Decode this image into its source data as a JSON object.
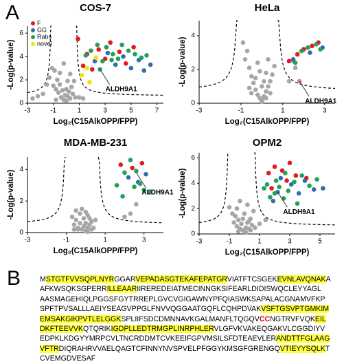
{
  "panel_labels": {
    "a": "A",
    "b": "B"
  },
  "chart_data": [
    {
      "type": "scatter",
      "title": "COS-7",
      "x_label": "Log₂(C15AlkOPP/FPP)",
      "y_label": "-Log(p-value)",
      "xlim": [
        -3,
        7.5
      ],
      "ylim": [
        0,
        6.6
      ],
      "xticks": [
        -3,
        -1,
        1,
        3,
        5,
        7
      ],
      "yticks": [
        0,
        2,
        4,
        6
      ],
      "legend": "upper-left",
      "series": [
        {
          "color": "#a6a6a6",
          "x": [
            -2.6,
            -2.2,
            -1.8,
            -1.5,
            -1.3,
            -1.1,
            -1.0,
            -0.9,
            -0.8,
            -0.7,
            -0.6,
            -0.5,
            -0.4,
            -0.3,
            -0.2,
            -0.1,
            0,
            0.1,
            0.2,
            0.3,
            0.4,
            0.5,
            0.6,
            0.7,
            -0.5,
            -0.2,
            0.1,
            0.3,
            -0.8,
            0.0,
            1.0,
            1.3
          ],
          "y": [
            0.4,
            0.6,
            0.8,
            1.6,
            2.2,
            3.0,
            1.5,
            2.8,
            1.2,
            2.0,
            0.9,
            1.6,
            0.5,
            1.1,
            0.3,
            0.7,
            0.2,
            0.6,
            1.0,
            0.4,
            1.4,
            0.8,
            1.9,
            0.5,
            2.6,
            3.4,
            1.9,
            2.5,
            0.3,
            1.2,
            0.5,
            0.4
          ]
        },
        {
          "name": "F",
          "color": "#e31a1c",
          "x": [
            0.9,
            1.3,
            1.6,
            2.0,
            2.5,
            3.0,
            3.4,
            4.1,
            4.6,
            5.2
          ],
          "y": [
            5.5,
            3.2,
            4.2,
            2.9,
            4.6,
            3.8,
            5.2,
            4.4,
            3.4,
            4.8
          ]
        },
        {
          "name": "GG",
          "color": "#2f6ea8",
          "x": [
            2.2,
            3.8,
            4.4,
            5.0,
            5.6,
            6.0,
            6.5,
            3.2
          ],
          "y": [
            3.6,
            3.3,
            4.0,
            3.0,
            3.7,
            2.8,
            3.3,
            4.3
          ]
        },
        {
          "name": "Rabs",
          "color": "#1fa15a",
          "x": [
            1.5,
            1.9,
            2.4,
            2.8,
            3.1,
            3.6,
            4.0,
            4.3,
            4.8,
            5.3,
            5.8,
            6.2,
            2.6,
            3.5
          ],
          "y": [
            4.1,
            4.5,
            5.0,
            3.6,
            4.8,
            4.2,
            3.8,
            5.0,
            4.5,
            4.2,
            3.9,
            4.1,
            2.9,
            3.7
          ]
        },
        {
          "name": "novel",
          "color": "#f2e600",
          "x": [
            1.2,
            1.8,
            2.3,
            1.6
          ],
          "y": [
            2.4,
            1.8,
            3.9,
            3.0
          ]
        }
      ],
      "annotation": {
        "text": "ALDH9A1",
        "x": 2.6,
        "y": 2.9
      }
    },
    {
      "type": "scatter",
      "title": "HeLa",
      "x_label": "Log₂(C15AlkOPP/FPP)",
      "y_label": "-Log(p-value)",
      "xlim": [
        -3,
        3.5
      ],
      "ylim": [
        0,
        4.9
      ],
      "xticks": [
        -3,
        -1,
        1,
        3
      ],
      "yticks": [
        0,
        2,
        4
      ],
      "series": [
        {
          "color": "#a6a6a6",
          "x": [
            -0.9,
            -0.8,
            -0.7,
            -0.6,
            -0.5,
            -0.4,
            -0.3,
            -0.2,
            -0.1,
            0,
            0.1,
            0.2,
            0.3,
            0.4,
            0.5,
            0.6,
            -0.5,
            -0.3,
            0,
            0.2,
            0.4,
            -0.2,
            0.1,
            -0.6,
            0.3,
            0.0,
            -0.1,
            0.2,
            1.3,
            1.6,
            1.5
          ],
          "y": [
            3.6,
            2.6,
            3.1,
            2.1,
            1.6,
            1.2,
            0.8,
            0.5,
            0.3,
            0.2,
            0.4,
            0.7,
            1.0,
            1.3,
            1.7,
            2.2,
            0.6,
            1.5,
            1.0,
            1.8,
            0.6,
            2.4,
            1.3,
            0.9,
            2.6,
            0.1,
            1.9,
            0.3,
            1.3,
            2.1,
            2.5
          ]
        },
        {
          "color": "#e31a1c",
          "x": [
            1.3,
            1.7,
            2.0,
            2.4,
            2.7
          ],
          "y": [
            2.5,
            2.9,
            3.2,
            3.4,
            3.6
          ]
        },
        {
          "color": "#2f6ea8",
          "x": [
            1.5,
            2.3,
            2.9
          ],
          "y": [
            2.6,
            3.0,
            3.3
          ]
        },
        {
          "color": "#1fa15a",
          "x": [
            1.9,
            2.2,
            2.6,
            2.8,
            1.6
          ],
          "y": [
            3.1,
            3.3,
            3.5,
            3.2,
            2.4
          ]
        },
        {
          "color": "#e8788a",
          "x": [
            1.8
          ],
          "y": [
            1.3
          ]
        }
      ],
      "annotation": {
        "text": "ALDH9A1",
        "x": 1.8,
        "y": 1.3
      }
    },
    {
      "type": "scatter",
      "title": "MDA-MB-231",
      "x_label": "Log₂(C15AlkOPP/FPP)",
      "y_label": "-Log(p-value)",
      "xlim": [
        -3,
        4
      ],
      "ylim": [
        0,
        4.8
      ],
      "xticks": [
        -3,
        -1,
        1,
        3
      ],
      "yticks": [
        0,
        2,
        4
      ],
      "series": [
        {
          "color": "#a6a6a6",
          "x": [
            -0.7,
            -0.6,
            -0.5,
            -0.4,
            -0.3,
            -0.2,
            -0.1,
            0,
            0.1,
            0.2,
            0.3,
            -0.5,
            -0.3,
            -0.1,
            0.1,
            0.3,
            -0.4,
            0,
            0.2,
            -0.2,
            0.4,
            0.5,
            -0.6,
            0.0,
            0.1,
            2.0,
            2.3,
            2.6
          ],
          "y": [
            1.0,
            0.5,
            0.8,
            0.3,
            0.6,
            0.2,
            0.4,
            0.1,
            0.3,
            0.5,
            0.7,
            1.4,
            1.2,
            0.9,
            1.1,
            0.2,
            0.2,
            0.6,
            0.9,
            1.5,
            0.3,
            0.8,
            0.2,
            1.3,
            0.05,
            1.0,
            1.2,
            1.8
          ]
        },
        {
          "color": "#e31a1c",
          "x": [
            1.8,
            2.4,
            2.9
          ],
          "y": [
            4.3,
            4.1,
            4.4
          ]
        },
        {
          "color": "#2f6ea8",
          "x": [
            2.2,
            2.7,
            3.1
          ],
          "y": [
            3.5,
            3.2,
            3.7
          ]
        },
        {
          "color": "#1fa15a",
          "x": [
            1.6,
            2.0,
            2.3,
            2.6,
            2.8,
            3.0,
            3.3,
            1.9,
            2.5
          ],
          "y": [
            3.0,
            3.8,
            4.6,
            3.9,
            3.1,
            2.7,
            2.6,
            2.3,
            2.9
          ]
        }
      ],
      "annotation": {
        "text": "ALDH9A1",
        "x": 2.6,
        "y": 3.8
      }
    },
    {
      "type": "scatter",
      "title": "OPM2",
      "x_label": "Log₂(C15AlkOPP/FPP)",
      "y_label": "-Log(p-value)",
      "xlim": [
        -3,
        6
      ],
      "ylim": [
        0,
        6.4
      ],
      "xticks": [
        -3,
        -1,
        1,
        3,
        5
      ],
      "yticks": [
        0,
        2,
        4,
        6
      ],
      "series": [
        {
          "color": "#a6a6a6",
          "x": [
            -1.0,
            -0.8,
            -0.7,
            -0.6,
            -0.5,
            -0.4,
            -0.3,
            -0.2,
            -0.1,
            0,
            0.1,
            0.2,
            0.3,
            0.4,
            0.5,
            0.6,
            -0.5,
            -0.3,
            0,
            0.2,
            0.4,
            -0.1,
            0.1,
            -0.4,
            0.3,
            0.7,
            1.0,
            1.4
          ],
          "y": [
            2.1,
            1.6,
            0.9,
            1.4,
            0.6,
            1.1,
            0.4,
            0.8,
            0.3,
            0.2,
            0.5,
            0.9,
            0.4,
            1.2,
            0.7,
            1.8,
            2.0,
            2.6,
            1.6,
            2.3,
            0.3,
            1.2,
            0.1,
            0.2,
            1.0,
            0.5,
            0.8,
            1.1
          ]
        },
        {
          "color": "#e31a1c",
          "x": [
            1.6,
            2.0,
            2.5,
            3.0,
            3.4,
            1.8,
            2.8,
            4.1
          ],
          "y": [
            4.8,
            5.3,
            5.0,
            5.6,
            4.6,
            3.6,
            4.2,
            4.4
          ]
        },
        {
          "color": "#2f6ea8",
          "x": [
            1.9,
            2.4,
            3.1,
            3.6,
            4.0,
            4.6,
            5.2,
            2.2
          ],
          "y": [
            2.6,
            4.4,
            3.9,
            3.2,
            4.2,
            3.5,
            3.6,
            3.3
          ]
        },
        {
          "color": "#1fa15a",
          "x": [
            1.5,
            1.7,
            2.1,
            2.3,
            2.7,
            2.9,
            3.3,
            3.8,
            4.3,
            4.8,
            2.0,
            2.6,
            3.5,
            1.3
          ],
          "y": [
            3.9,
            2.9,
            4.2,
            3.7,
            4.8,
            3.4,
            4.1,
            4.6,
            3.8,
            4.3,
            3.2,
            2.8,
            2.4,
            3.6
          ]
        }
      ],
      "annotation": {
        "text": "ALDH9A1",
        "x": 2.2,
        "y": 3.3
      }
    }
  ],
  "sequence": {
    "lines": [
      [
        {
          "text": "M",
          "style": "plain"
        },
        {
          "text": "STGTFVVSQPLNYR",
          "style": "highlight"
        },
        {
          "text": "GGAR",
          "style": "plain"
        },
        {
          "text": "VEPADASGTEKAFEPATGR",
          "style": "highlight"
        },
        {
          "text": "VIATFTCSGEK",
          "style": "plain"
        },
        {
          "text": "EVNLAVQNAK",
          "style": "highlight"
        },
        {
          "text": "A",
          "style": "plain"
        }
      ],
      [
        {
          "text": "AFKWSQKSGPERR",
          "style": "plain"
        },
        {
          "text": "ILLEAAR",
          "style": "highlight"
        },
        {
          "text": "IIREREDEIATMECINNGKSIFEARLDIDISWQCLEYYAGL",
          "style": "plain"
        }
      ],
      [
        {
          "text": "AASMAGEHIQLPGGSFGYTRREPLGVCVGIGAWNYPFQIASWKSAPALACGNAMVFKP",
          "style": "plain"
        }
      ],
      [
        {
          "text": "SPFTPVSALLLAEIYSEAGVPPGLFNVVQGGAATGQFLCQHPDVAK",
          "style": "plain"
        },
        {
          "text": "VSFTGSVPTGMKIM",
          "style": "highlight"
        }
      ],
      [
        {
          "text": "EMSAKGIKPVTLELGGK",
          "style": "highlight"
        },
        {
          "text": "SPLIIFSDCDMNNAVKGALMANFLTQGQV",
          "style": "plain"
        },
        {
          "text": "CC",
          "style": "red"
        },
        {
          "text": "NGTRVFVQK",
          "style": "plain"
        },
        {
          "text": "EIL",
          "style": "highlight"
        }
      ],
      [
        {
          "text": "DKFTEEVVK",
          "style": "highlight"
        },
        {
          "text": "QTQRIK",
          "style": "plain"
        },
        {
          "text": "IGDPLLEDTRMGPLINRPHLER",
          "style": "highlight"
        },
        {
          "text": "VLGFVKVAKEQGAKVLCGGDIYV",
          "style": "plain"
        }
      ],
      [
        {
          "text": "EDPKLKDGYYMRPCVLTNCRDDMTCVKEEIFGPVMSILSFDTEAEVLER",
          "style": "plain"
        },
        {
          "text": "ANDTTFGLAAG",
          "style": "highlight"
        }
      ],
      [
        {
          "text": "VFTR",
          "style": "highlight"
        },
        {
          "text": "DIQRAHRVVAELQAGTCFINNYNVSPVELPFGGYKMSGFGRENGQ",
          "style": "plain"
        },
        {
          "text": "VTIEYYSQLK",
          "style": "highlight"
        },
        {
          "text": "T",
          "style": "plain"
        }
      ],
      [
        {
          "text": "CVEMGDVESAF",
          "style": "plain"
        }
      ]
    ]
  }
}
